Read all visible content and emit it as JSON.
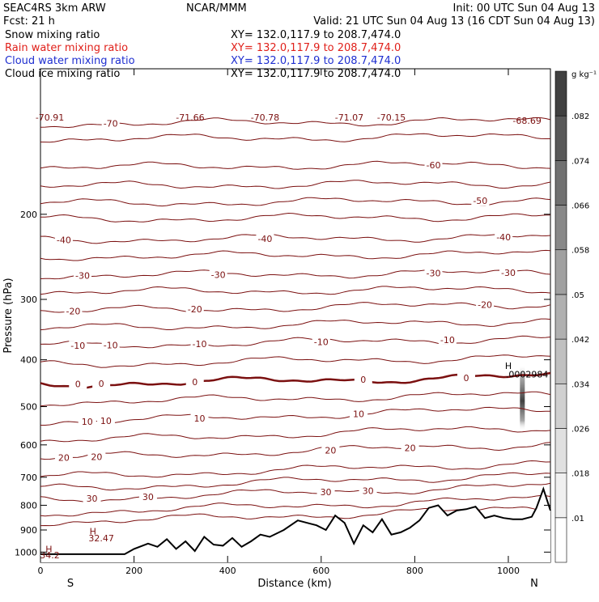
{
  "header": {
    "left_line1": "SEAC4RS  3km ARW",
    "left_line2": "Fcst:    21 h",
    "center_line1": "NCAR/MMM",
    "init": "Init: 00 UTC Sun 04 Aug 13",
    "valid": "Valid: 21 UTC Sun 04 Aug 13 (16 CDT Sun 04 Aug 13)"
  },
  "fields": [
    {
      "label": "Snow mixing ratio",
      "xy": "XY= 132.0,117.9 to 208.7,474.0",
      "color": "#000000"
    },
    {
      "label": "Rain water mixing ratio",
      "xy": "XY= 132.0,117.9 to 208.7,474.0",
      "color": "#e0201a"
    },
    {
      "label": "Cloud water mixing ratio",
      "xy": "XY= 132.0,117.9 to 208.7,474.0",
      "color": "#1f2fd0"
    },
    {
      "label": "Cloud ice mixing ratio",
      "xy": "XY= 132.0,117.9 to 208.7,474.0",
      "color": "#000000"
    }
  ],
  "chart_data": {
    "type": "line",
    "xlabel": "Distance (km)",
    "ylabel": "Pressure (hPa)",
    "xlim": [
      0,
      1090
    ],
    "ylim": [
      1050,
      100
    ],
    "y_scale": "log",
    "x_ticks": [
      0,
      200,
      400,
      600,
      800,
      1000
    ],
    "y_ticks": [
      200,
      300,
      400,
      500,
      600,
      700,
      800,
      900,
      1000
    ],
    "x_end_labels": {
      "left": "S",
      "right": "N"
    },
    "colorbar": {
      "unit": "g kg-1",
      "ticks": [
        ".01",
        ".018",
        ".026",
        ".034",
        ".042",
        ".05",
        ".058",
        ".066",
        ".074",
        ".082"
      ],
      "colors": [
        "#ffffff",
        "#f0f0f0",
        "#e0e0e0",
        "#d0d0d0",
        "#c0c0c0",
        "#b0b0b0",
        "#a0a0a0",
        "#888888",
        "#707070",
        "#585858",
        "#404040"
      ]
    },
    "contour_color": "#7b1010",
    "isotherms": [
      {
        "label": -70,
        "p": 130,
        "labels_at": [
          [
            150,
            "-70"
          ]
        ]
      },
      {
        "label": -60,
        "p": 160,
        "labels_at": [
          [
            840,
            "-60"
          ]
        ]
      },
      {
        "label": -50,
        "p": 190,
        "labels_at": [
          [
            940,
            "-50"
          ]
        ]
      },
      {
        "label": -40,
        "p": 226,
        "labels_at": [
          [
            50,
            "-40"
          ],
          [
            480,
            "-40"
          ],
          [
            990,
            "-40"
          ]
        ]
      },
      {
        "label": -30,
        "p": 268,
        "labels_at": [
          [
            90,
            "-30"
          ],
          [
            380,
            "-30"
          ],
          [
            840,
            "-30"
          ],
          [
            1000,
            "-30"
          ]
        ]
      },
      {
        "label": -20,
        "p": 318,
        "labels_at": [
          [
            70,
            "-20"
          ],
          [
            330,
            "-20"
          ],
          [
            950,
            "-20"
          ]
        ]
      },
      {
        "label": -10,
        "p": 375,
        "labels_at": [
          [
            80,
            "-10"
          ],
          [
            150,
            "-10"
          ],
          [
            340,
            "-10"
          ],
          [
            600,
            "-10"
          ],
          [
            870,
            "-10"
          ]
        ]
      },
      {
        "label": 0,
        "p": 450,
        "labels_at": [
          [
            80,
            "0"
          ],
          [
            130,
            "0"
          ],
          [
            330,
            "0"
          ],
          [
            690,
            "0"
          ],
          [
            910,
            "0"
          ]
        ]
      },
      {
        "label": 10,
        "p": 540,
        "labels_at": [
          [
            100,
            "10"
          ],
          [
            140,
            "10"
          ],
          [
            340,
            "10"
          ],
          [
            680,
            "10"
          ]
        ]
      },
      {
        "label": 20,
        "p": 640,
        "labels_at": [
          [
            50,
            "20"
          ],
          [
            120,
            "20"
          ],
          [
            620,
            "20"
          ],
          [
            790,
            "20"
          ]
        ]
      },
      {
        "label": 30,
        "p": 780,
        "labels_at": [
          [
            110,
            "30"
          ],
          [
            230,
            "30"
          ],
          [
            610,
            "30"
          ],
          [
            700,
            "30"
          ]
        ]
      }
    ],
    "extra_contours": [
      140,
      175,
      205,
      245,
      290,
      345,
      410,
      490,
      590,
      700,
      740,
      830,
      870
    ],
    "annotations": [
      {
        "text": "-70.91",
        "x": 20,
        "p": 128,
        "color": "#7b1010"
      },
      {
        "text": "-71.66",
        "x": 320,
        "p": 128,
        "color": "#7b1010"
      },
      {
        "text": "-70.78",
        "x": 480,
        "p": 128,
        "color": "#7b1010"
      },
      {
        "text": "-71.07",
        "x": 660,
        "p": 128,
        "color": "#7b1010"
      },
      {
        "text": "-70.15",
        "x": 750,
        "p": 128,
        "color": "#7b1010"
      },
      {
        "text": "-68.69",
        "x": 1040,
        "p": 130,
        "color": "#7b1010"
      },
      {
        "text": "H",
        "x": 18,
        "p": 1000,
        "color": "#7b1010"
      },
      {
        "text": "34.2",
        "x": 20,
        "p": 1030,
        "color": "#7b1010"
      },
      {
        "text": "H",
        "x": 112,
        "p": 920,
        "color": "#7b1010"
      },
      {
        "text": "32.47",
        "x": 130,
        "p": 950,
        "color": "#7b1010"
      },
      {
        "text": "H",
        "x": 1000,
        "p": 418,
        "color": "#000000"
      },
      {
        "text": ".0002984",
        "x": 1040,
        "p": 435,
        "color": "#000000"
      }
    ],
    "terrain": {
      "x": [
        0,
        180,
        200,
        230,
        250,
        270,
        290,
        310,
        330,
        350,
        370,
        390,
        410,
        430,
        450,
        470,
        490,
        520,
        550,
        570,
        590,
        610,
        630,
        650,
        670,
        690,
        710,
        730,
        750,
        770,
        790,
        810,
        830,
        850,
        870,
        890,
        910,
        930,
        950,
        970,
        990,
        1010,
        1030,
        1050,
        1060,
        1075,
        1090
      ],
      "p": [
        1010,
        1010,
        985,
        960,
        975,
        940,
        985,
        950,
        995,
        930,
        965,
        970,
        935,
        975,
        950,
        920,
        930,
        900,
        860,
        870,
        880,
        900,
        840,
        870,
        960,
        880,
        910,
        855,
        920,
        910,
        890,
        860,
        810,
        800,
        840,
        820,
        815,
        805,
        850,
        840,
        850,
        855,
        855,
        845,
        810,
        740,
        820
      ]
    },
    "snow_patch": {
      "x": 1030,
      "p_top": 410,
      "p_bottom": 560
    }
  }
}
